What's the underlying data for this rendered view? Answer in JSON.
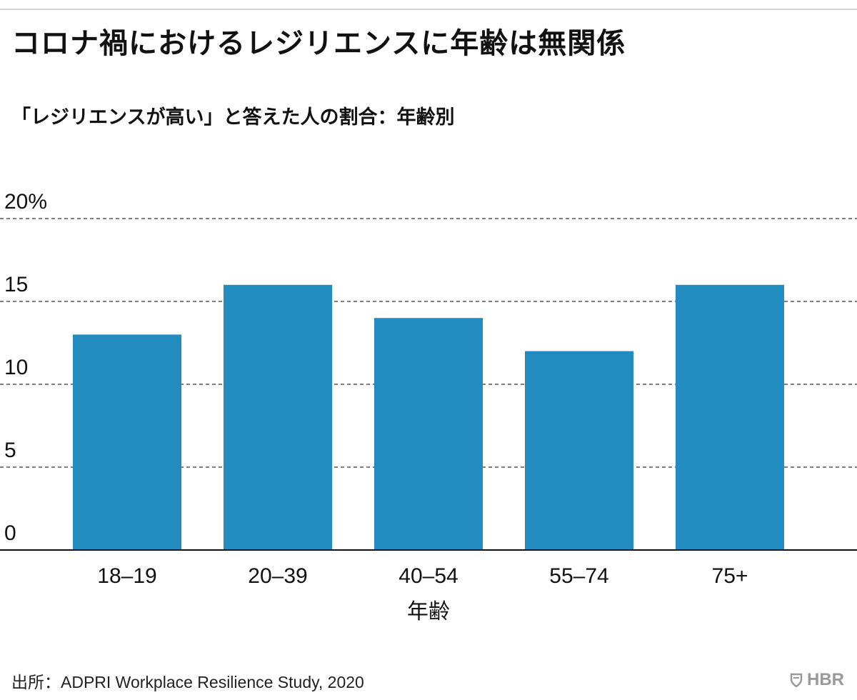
{
  "header": {
    "title": "コロナ禍におけるレジリエンスに年齢は無関係",
    "subtitle": "「レジリエンスが高い」と答えた人の割合：年齢別"
  },
  "footer": {
    "source": "出所：ADPRI Workplace Resilience Study, 2020",
    "brand": "HBR",
    "brand_icon": "shield-icon"
  },
  "colors": {
    "bar": "#228bbf",
    "grid": "#555555",
    "axis": "#111111",
    "text": "#111111"
  },
  "chart_data": {
    "type": "bar",
    "title": "「レジリエンスが高い」と答えた人の割合：年齢別",
    "xlabel": "年齢",
    "ylabel": "",
    "categories": [
      "18–19",
      "20–39",
      "40–54",
      "55–74",
      "75+"
    ],
    "values": [
      13,
      16,
      14,
      12,
      16
    ],
    "ylim": [
      0,
      20
    ],
    "yticks": [
      0,
      5,
      10,
      15,
      20
    ],
    "ytick_labels": [
      "0",
      "5",
      "10",
      "15",
      "20%"
    ],
    "grid": true,
    "legend": "none"
  }
}
